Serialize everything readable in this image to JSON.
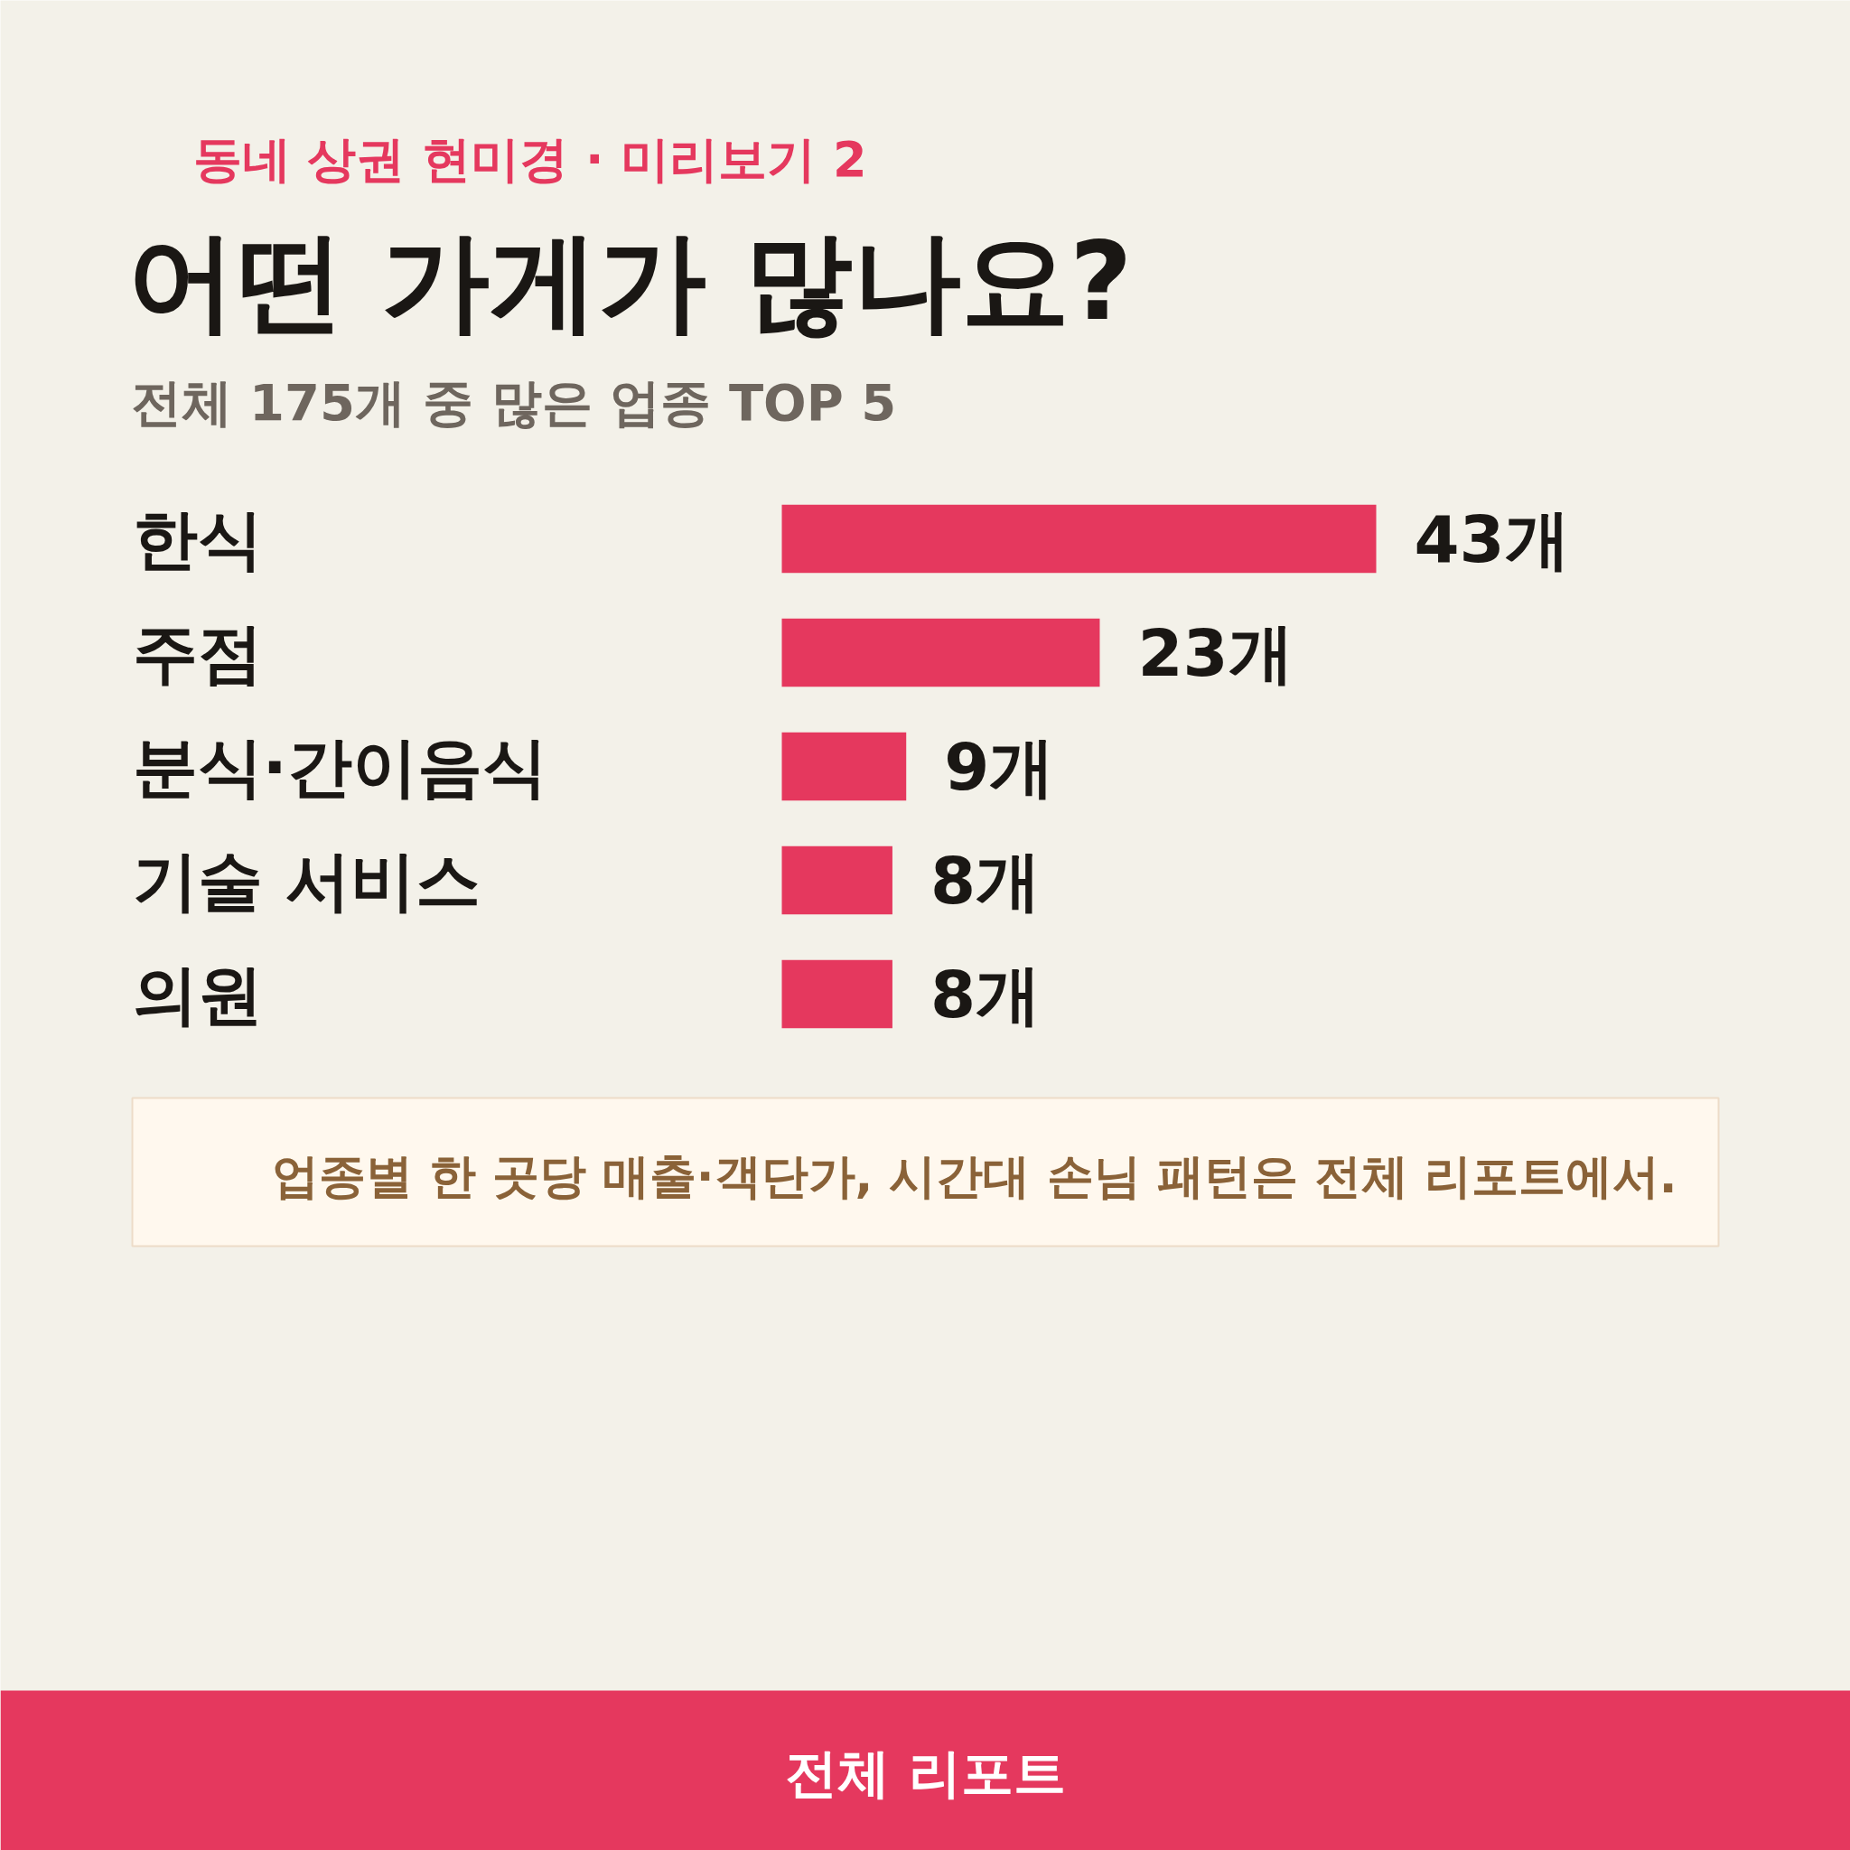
{
  "chart_data": {
    "type": "bar",
    "orientation": "horizontal",
    "title": "어떤 가게가 많나요?",
    "subtitle": "전체 175개 중 많은 업종 TOP 5",
    "categories": [
      "한식",
      "주점",
      "분식·간이음식",
      "기술 서비스",
      "의원"
    ],
    "values": [
      43,
      23,
      9,
      8,
      8
    ],
    "color": "#e5385e",
    "value_labels": [
      "43개",
      "23개",
      "9개",
      "8개",
      "8개"
    ],
    "annotations": [
      "동네 상권 현미경 · 미리보기 2",
      "업종별 한 곳당 매출·객단가, 시간대 손님 패턴은 전체 리포트에서.",
      "전체 리포트"
    ]
  }
}
